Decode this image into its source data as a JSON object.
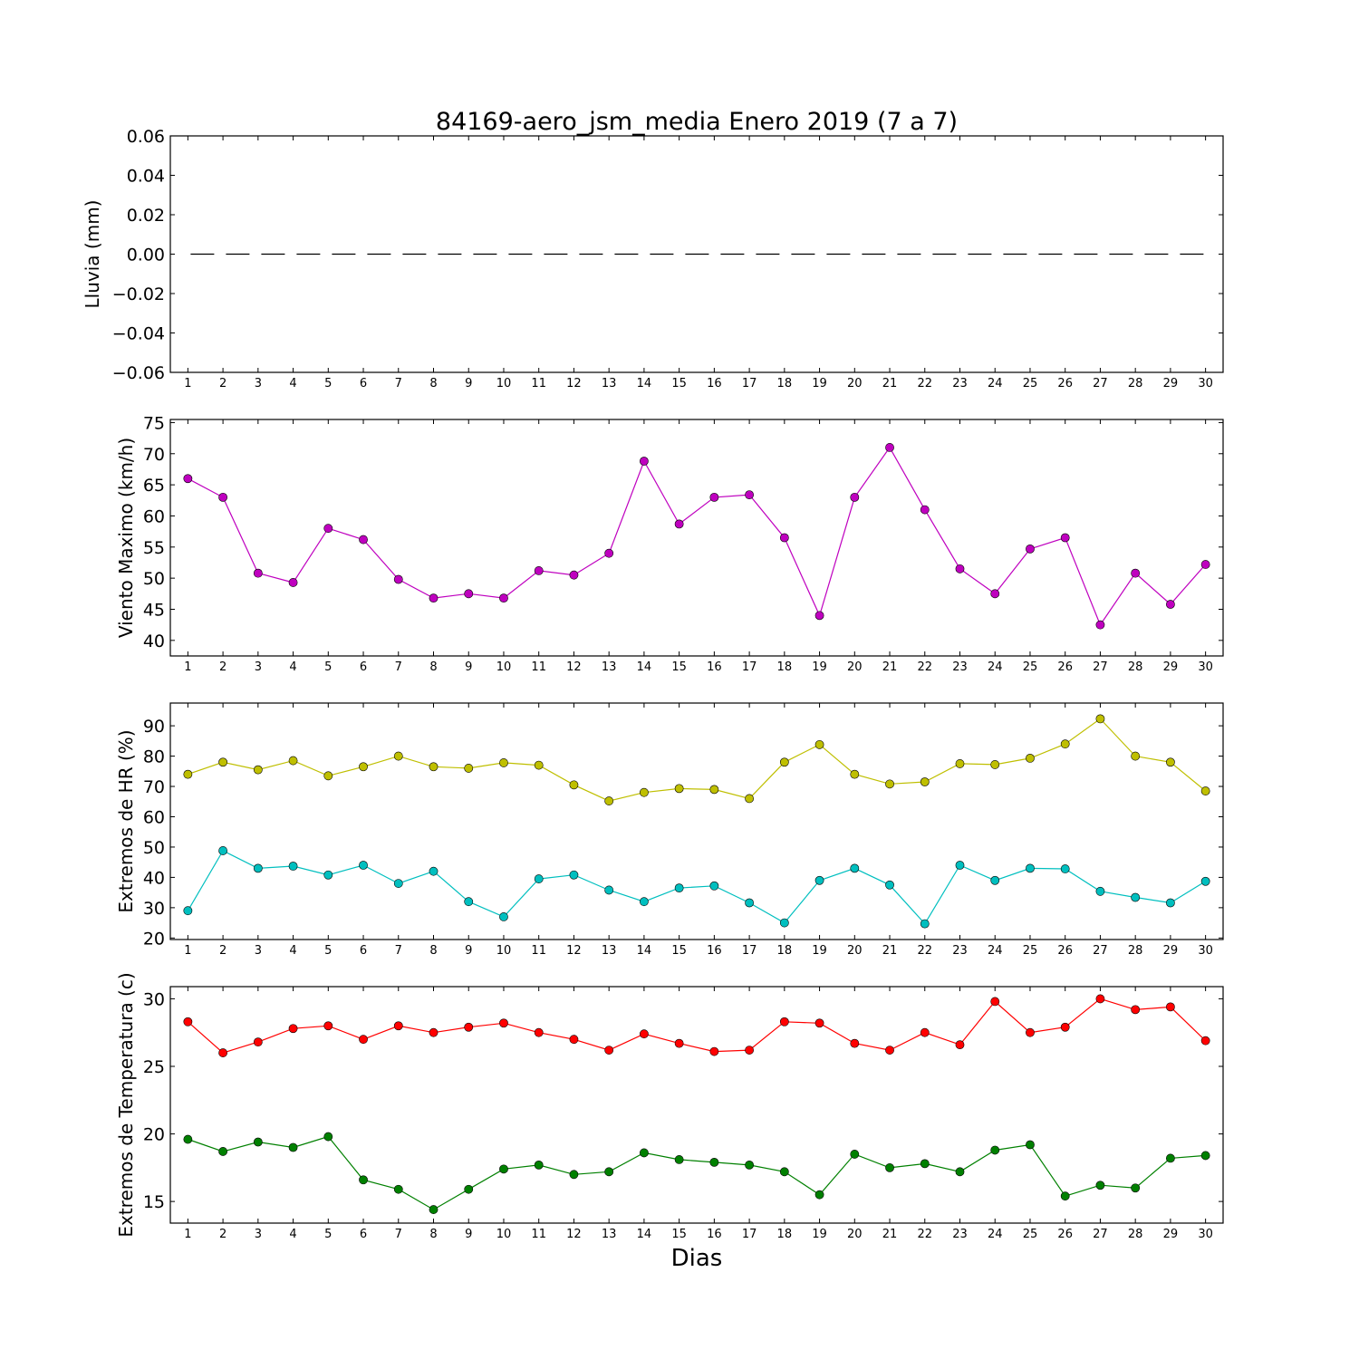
{
  "figure": {
    "title": "84169-aero_jsm_media Enero 2019  (7 a 7)",
    "xlabel": "Dias"
  },
  "chart_data": [
    {
      "type": "line",
      "ylabel": "Lluvia (mm)",
      "x": [
        1,
        2,
        3,
        4,
        5,
        6,
        7,
        8,
        9,
        10,
        11,
        12,
        13,
        14,
        15,
        16,
        17,
        18,
        19,
        20,
        21,
        22,
        23,
        24,
        25,
        26,
        27,
        28,
        29,
        30
      ],
      "xlim": [
        0.5,
        30.5
      ],
      "ylim": [
        -0.06,
        0.06
      ],
      "yticks": [
        -0.06,
        -0.04,
        -0.02,
        0.0,
        0.02,
        0.04,
        0.06
      ],
      "ytick_labels": [
        "−0.06",
        "−0.04",
        "−0.02",
        "0.00",
        "0.02",
        "0.04",
        "0.06"
      ],
      "grid": false,
      "series": [
        {
          "style": "dashed",
          "color": "#000000",
          "marker": "none",
          "values": [
            0,
            0,
            0,
            0,
            0,
            0,
            0,
            0,
            0,
            0,
            0,
            0,
            0,
            0,
            0,
            0,
            0,
            0,
            0,
            0,
            0,
            0,
            0,
            0,
            0,
            0,
            0,
            0,
            0,
            0
          ]
        }
      ]
    },
    {
      "type": "line",
      "ylabel": "Viento Maximo (km/h)",
      "x": [
        1,
        2,
        3,
        4,
        5,
        6,
        7,
        8,
        9,
        10,
        11,
        12,
        13,
        14,
        15,
        16,
        17,
        18,
        19,
        20,
        21,
        22,
        23,
        24,
        25,
        26,
        27,
        28,
        29,
        30
      ],
      "xlim": [
        0.5,
        30.5
      ],
      "ylim": [
        37.5,
        75.5
      ],
      "yticks": [
        40,
        45,
        50,
        55,
        60,
        65,
        70,
        75
      ],
      "ytick_labels": [
        "40",
        "45",
        "50",
        "55",
        "60",
        "65",
        "70",
        "75"
      ],
      "grid": false,
      "series": [
        {
          "style": "solid",
          "color": "#bf00bf",
          "marker": "circle",
          "values": [
            66,
            63,
            50.8,
            49.3,
            58,
            56.2,
            49.8,
            46.8,
            47.5,
            46.8,
            51.2,
            50.5,
            54,
            68.8,
            58.7,
            63,
            63.4,
            56.5,
            44,
            63,
            71,
            61,
            51.5,
            47.5,
            54.7,
            56.5,
            42.5,
            50.8,
            45.8,
            52.2
          ]
        }
      ]
    },
    {
      "type": "line",
      "ylabel": "Extremos de HR (%)",
      "x": [
        1,
        2,
        3,
        4,
        5,
        6,
        7,
        8,
        9,
        10,
        11,
        12,
        13,
        14,
        15,
        16,
        17,
        18,
        19,
        20,
        21,
        22,
        23,
        24,
        25,
        26,
        27,
        28,
        29,
        30
      ],
      "xlim": [
        0.5,
        30.5
      ],
      "ylim": [
        19.5,
        97.5
      ],
      "yticks": [
        20,
        30,
        40,
        50,
        60,
        70,
        80,
        90
      ],
      "ytick_labels": [
        "20",
        "30",
        "40",
        "50",
        "60",
        "70",
        "80",
        "90"
      ],
      "grid": false,
      "series": [
        {
          "style": "solid",
          "color": "#bfbf00",
          "marker": "circle",
          "values": [
            74,
            78,
            75.5,
            78.5,
            73.5,
            76.5,
            80,
            76.5,
            76,
            77.8,
            77,
            70.5,
            65.2,
            68,
            69.3,
            69,
            66,
            78,
            83.8,
            74,
            70.8,
            71.5,
            77.5,
            77.2,
            79.3,
            84,
            92.3,
            80,
            78,
            68.5
          ]
        },
        {
          "style": "solid",
          "color": "#00bfbf",
          "marker": "circle",
          "values": [
            29,
            48.8,
            43,
            43.7,
            40.8,
            44,
            38,
            42,
            32,
            27,
            39.5,
            40.8,
            35.8,
            32,
            36.5,
            37.2,
            31.6,
            25,
            39,
            43,
            37.5,
            24.7,
            44,
            39,
            43,
            42.8,
            35.4,
            33.4,
            31.6,
            38.7
          ]
        }
      ]
    },
    {
      "type": "line",
      "ylabel": "Extremos de Temperatura (c)",
      "x": [
        1,
        2,
        3,
        4,
        5,
        6,
        7,
        8,
        9,
        10,
        11,
        12,
        13,
        14,
        15,
        16,
        17,
        18,
        19,
        20,
        21,
        22,
        23,
        24,
        25,
        26,
        27,
        28,
        29,
        30
      ],
      "xlim": [
        0.5,
        30.5
      ],
      "ylim": [
        13.4,
        30.9
      ],
      "yticks": [
        15,
        20,
        25,
        30
      ],
      "ytick_labels": [
        "15",
        "20",
        "25",
        "30"
      ],
      "grid": false,
      "series": [
        {
          "style": "solid",
          "color": "#ff0000",
          "marker": "circle",
          "values": [
            28.3,
            26,
            26.8,
            27.8,
            28,
            27,
            28,
            27.5,
            27.9,
            28.2,
            27.5,
            27,
            26.2,
            27.4,
            26.7,
            26.1,
            26.2,
            28.3,
            28.2,
            26.7,
            26.2,
            27.5,
            26.6,
            29.8,
            27.5,
            27.9,
            30,
            29.2,
            29.4,
            26.9
          ]
        },
        {
          "style": "solid",
          "color": "#008000",
          "marker": "circle",
          "values": [
            19.6,
            18.7,
            19.4,
            19,
            19.8,
            16.6,
            15.9,
            14.4,
            15.9,
            17.4,
            17.7,
            17,
            17.2,
            18.6,
            18.1,
            17.9,
            17.7,
            17.2,
            15.5,
            18.5,
            17.5,
            17.8,
            17.2,
            18.8,
            19.2,
            15.4,
            16.2,
            16,
            18.2,
            18.4
          ]
        }
      ]
    }
  ]
}
